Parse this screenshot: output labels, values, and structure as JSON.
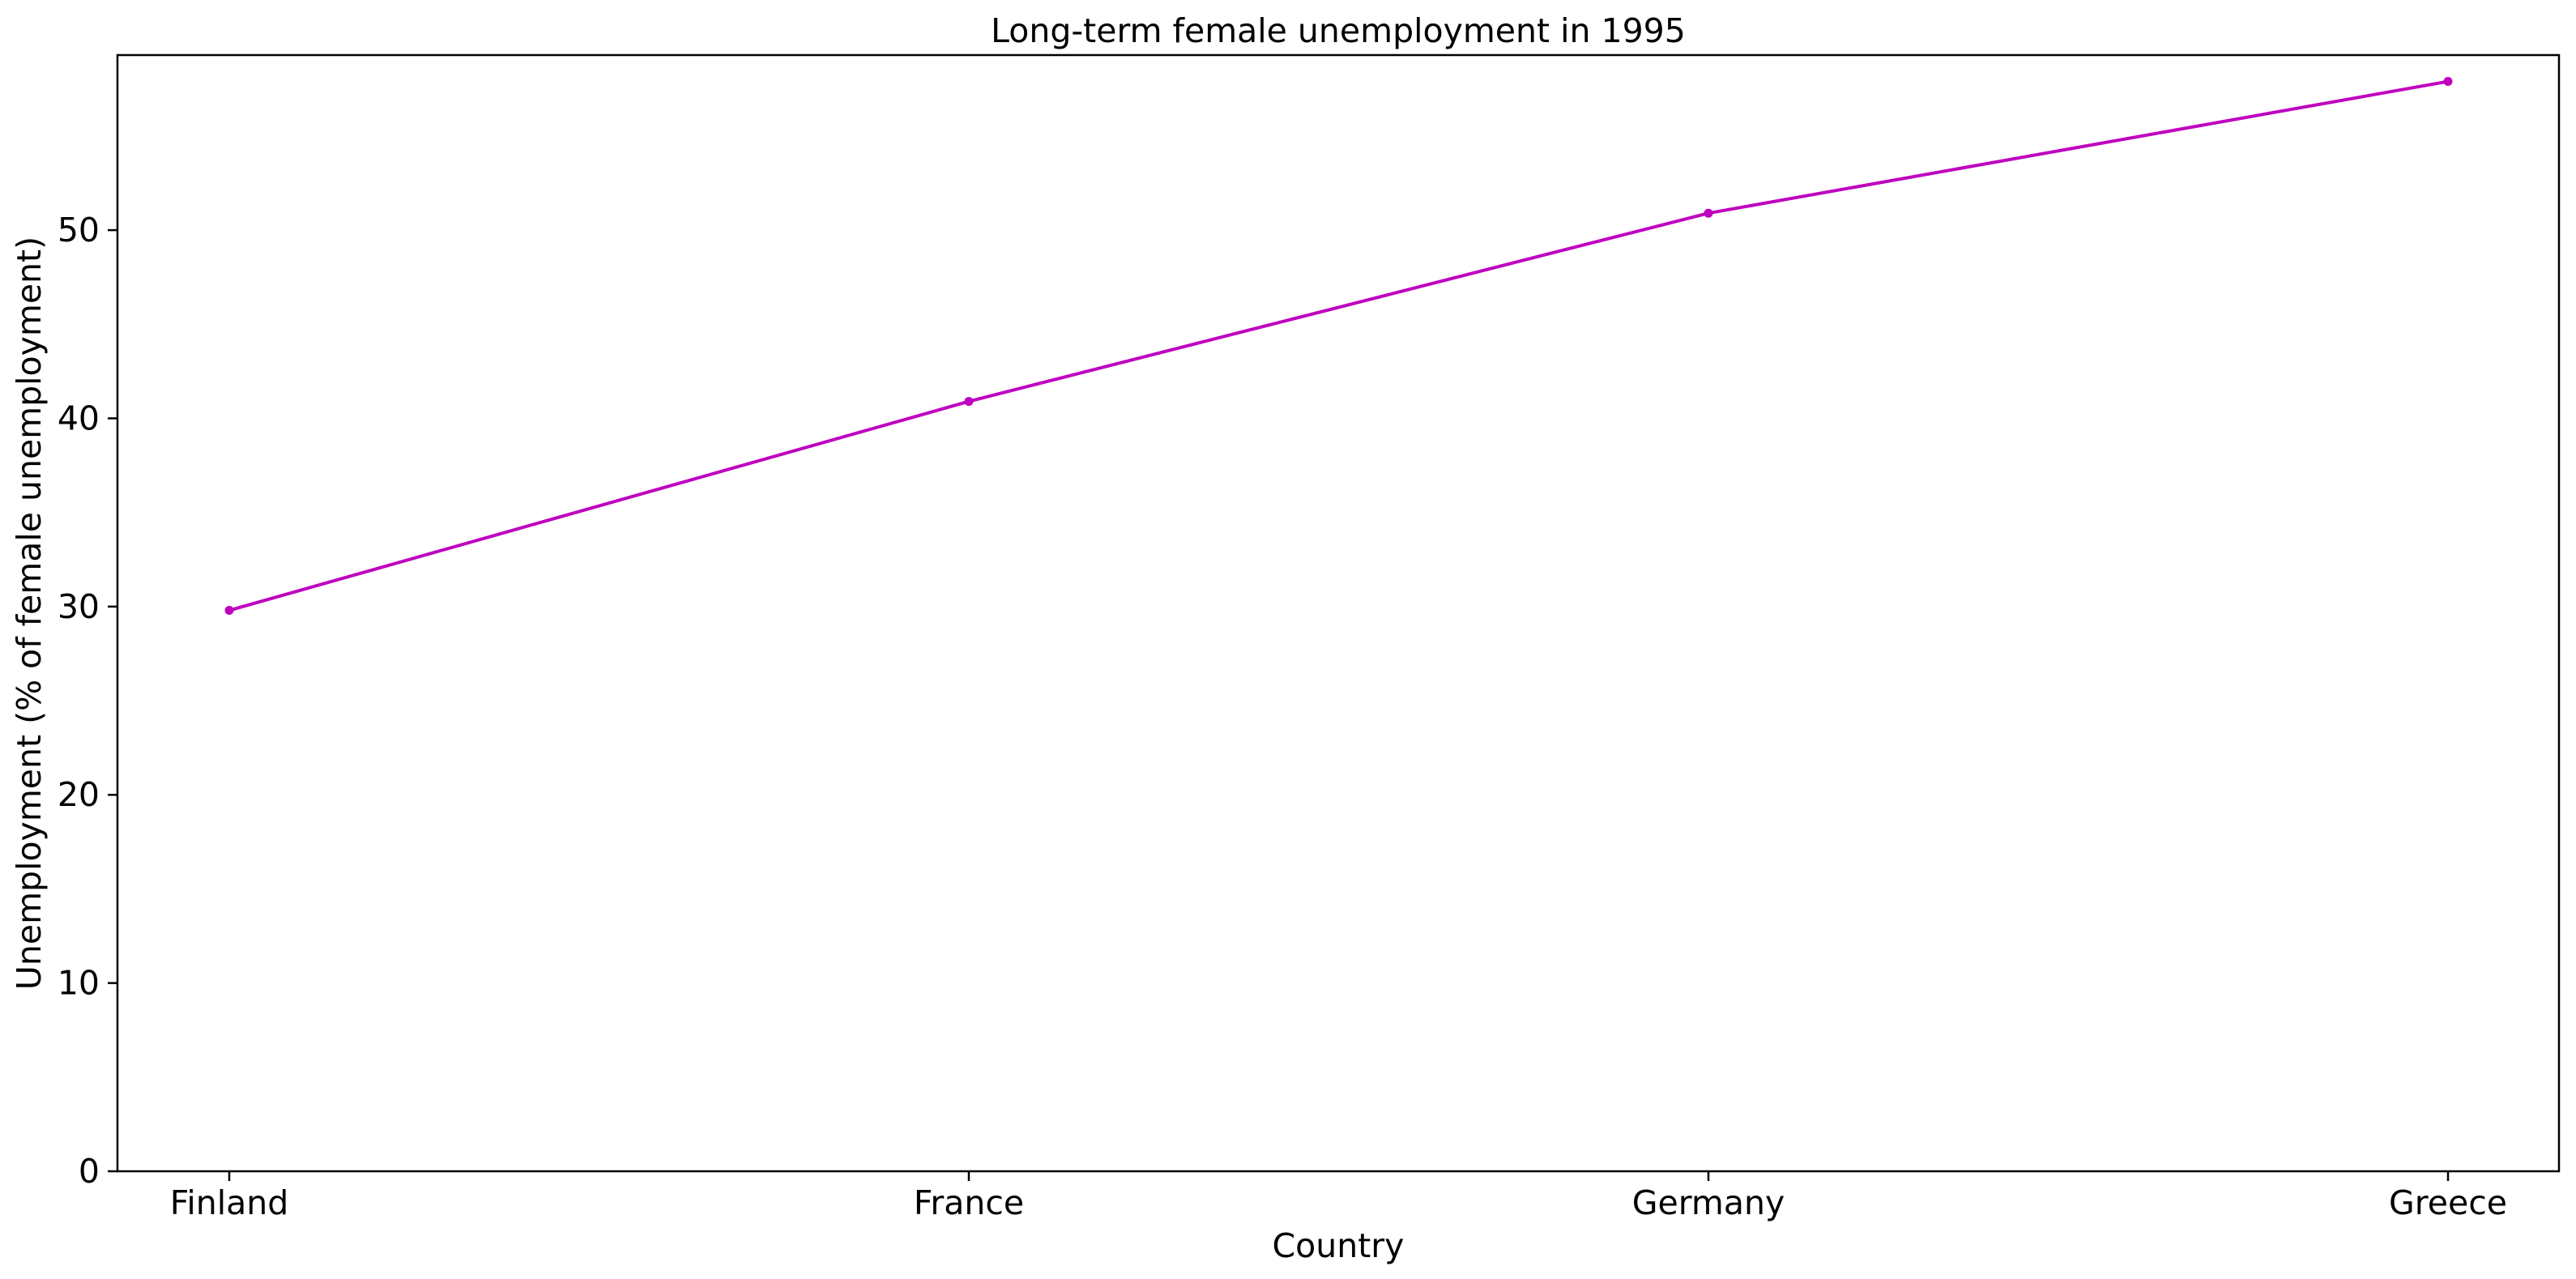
{
  "chart_data": {
    "type": "line",
    "title": "Long-term female unemployment in 1995",
    "xlabel": "Country",
    "ylabel": "Unemployment (% of female unemployment)",
    "categories": [
      "Finland",
      "France",
      "Germany",
      "Greece"
    ],
    "series": [
      {
        "values": [
          29.8,
          40.9,
          50.9,
          57.9
        ]
      }
    ],
    "ylim": [
      0,
      59.3
    ],
    "yticks": [
      0,
      10,
      20,
      30,
      40,
      50
    ],
    "grid": false,
    "line_color": "#bf00bf"
  }
}
